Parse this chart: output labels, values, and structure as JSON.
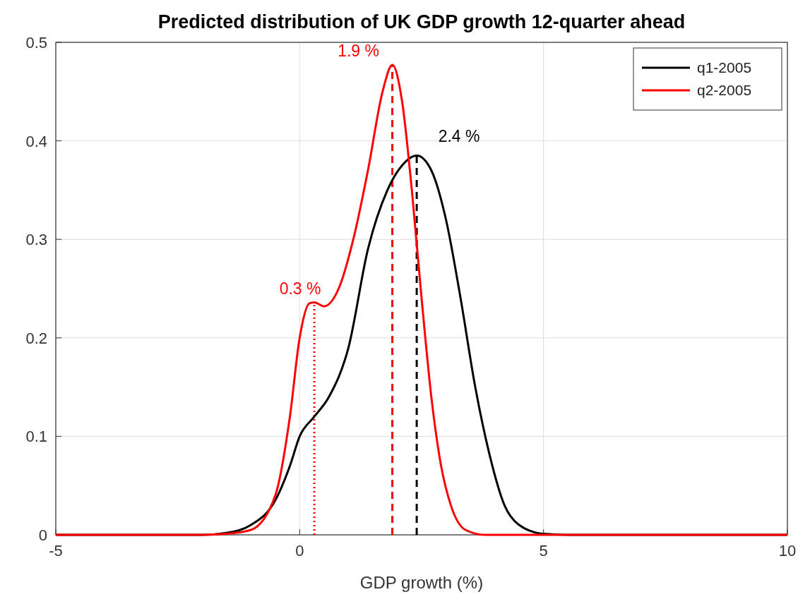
{
  "chart_data": {
    "type": "line",
    "title": "Predicted distribution of UK GDP growth 12-quarter ahead",
    "xlabel": "GDP growth (%)",
    "xlim": [
      -5,
      10
    ],
    "ylim": [
      0,
      0.5
    ],
    "xticks": [
      -5,
      0,
      5,
      10
    ],
    "yticks": [
      0,
      0.1,
      0.2,
      0.3,
      0.4,
      0.5
    ],
    "grid": true,
    "legend": "top right",
    "marker": "none",
    "line_style": "solid",
    "series": [
      {
        "name": "q1-2005",
        "color": "#000000",
        "x": [
          -5,
          -2,
          -1.5,
          -1,
          -0.5,
          -0.2,
          0,
          0.3,
          0.6,
          1.0,
          1.4,
          1.8,
          2.1,
          2.4,
          2.7,
          3.0,
          3.3,
          3.6,
          3.9,
          4.2,
          4.5,
          5,
          5.5,
          10
        ],
        "values": [
          0,
          0,
          0.002,
          0.01,
          0.035,
          0.07,
          0.1,
          0.12,
          0.14,
          0.19,
          0.29,
          0.35,
          0.375,
          0.385,
          0.37,
          0.32,
          0.24,
          0.15,
          0.08,
          0.03,
          0.01,
          0.001,
          0,
          0
        ]
      },
      {
        "name": "q2-2005",
        "color": "#ff0000",
        "x": [
          -5,
          -2,
          -1.5,
          -1,
          -0.5,
          -0.2,
          0,
          0.2,
          0.3,
          0.5,
          0.8,
          1.1,
          1.4,
          1.7,
          1.9,
          2.1,
          2.3,
          2.5,
          2.7,
          2.9,
          3.1,
          3.4,
          3.8,
          10
        ],
        "values": [
          0,
          0,
          0.001,
          0.005,
          0.04,
          0.12,
          0.2,
          0.235,
          0.236,
          0.232,
          0.25,
          0.3,
          0.37,
          0.45,
          0.477,
          0.44,
          0.35,
          0.24,
          0.14,
          0.07,
          0.03,
          0.005,
          0,
          0
        ]
      }
    ],
    "ref_lines": [
      {
        "axis": "x",
        "value": 2.4,
        "label": "2.4 %",
        "color": "#000000",
        "line_style": "dashed"
      },
      {
        "axis": "x",
        "value": 1.9,
        "label": "1.9 %",
        "color": "#ff0000",
        "line_style": "dashed"
      },
      {
        "axis": "x",
        "value": 0.3,
        "label": "0.3 %",
        "color": "#ff0000",
        "line_style": "dotted"
      }
    ]
  }
}
